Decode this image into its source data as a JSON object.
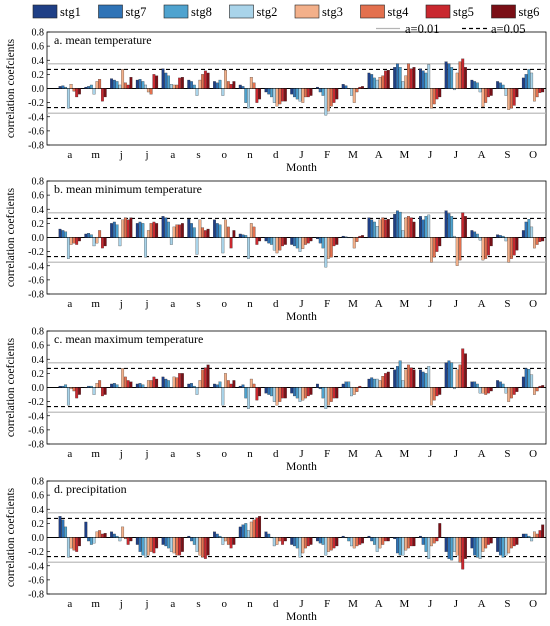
{
  "legend": {
    "items": [
      {
        "name": "stg1",
        "color": "#1f3f86"
      },
      {
        "name": "stg7",
        "color": "#2f73b6"
      },
      {
        "name": "stg8",
        "color": "#4fa3cf"
      },
      {
        "name": "stg2",
        "color": "#a9d4ea"
      },
      {
        "name": "stg3",
        "color": "#f3b08a"
      },
      {
        "name": "stg4",
        "color": "#e3704e"
      },
      {
        "name": "stg5",
        "color": "#c9282f"
      },
      {
        "name": "stg6",
        "color": "#7a0f16"
      }
    ],
    "threshold_items": [
      {
        "label": "a=0.01",
        "style": "solid-gray"
      },
      {
        "label": "a=0.05",
        "style": "dashed-black"
      }
    ]
  },
  "chart_data": [
    {
      "type": "bar",
      "title": "a. mean temperature",
      "xlabel": "Month",
      "ylabel": "correlation coefcients",
      "ylim": [
        -0.8,
        0.8
      ],
      "yticks": [
        "0.8",
        "0.6",
        "0.4",
        "0.2",
        "0.0",
        "-0.2",
        "-0.4",
        "-0.6",
        "-0.8"
      ],
      "categories": [
        "a",
        "m",
        "j",
        "j",
        "a",
        "s",
        "o",
        "n",
        "d",
        "J",
        "F",
        "M",
        "A",
        "M",
        "J",
        "J",
        "A",
        "S",
        "O"
      ],
      "thresholds": {
        "a=0.01": 0.35,
        "a=0.05": 0.27
      },
      "series": [
        {
          "name": "stg1",
          "values": [
            0.03,
            0.02,
            0.14,
            0.12,
            0.28,
            0.12,
            0.1,
            0.05,
            -0.05,
            -0.08,
            0.02,
            0.06,
            0.22,
            0.3,
            0.28,
            0.38,
            0.12,
            0.1,
            0.15
          ]
        },
        {
          "name": "stg7",
          "values": [
            0.04,
            0.03,
            0.12,
            0.13,
            0.22,
            0.1,
            0.08,
            0.03,
            -0.08,
            -0.12,
            -0.05,
            0.04,
            0.2,
            0.35,
            0.25,
            0.35,
            0.1,
            0.08,
            0.2
          ]
        },
        {
          "name": "stg8",
          "values": [
            0.02,
            0.05,
            0.1,
            0.1,
            0.18,
            0.05,
            0.12,
            -0.2,
            -0.12,
            -0.15,
            -0.1,
            0.0,
            0.15,
            0.3,
            0.22,
            0.3,
            0.08,
            0.05,
            0.27
          ]
        },
        {
          "name": "stg2",
          "values": [
            -0.28,
            -0.08,
            0.05,
            0.05,
            0.06,
            -0.1,
            -0.1,
            -0.28,
            -0.2,
            -0.18,
            -0.38,
            -0.1,
            0.12,
            0.1,
            0.34,
            -0.02,
            -0.05,
            -0.1,
            0.22
          ]
        },
        {
          "name": "stg3",
          "values": [
            0.06,
            0.1,
            0.27,
            -0.05,
            0.05,
            0.12,
            0.26,
            0.16,
            -0.25,
            -0.2,
            -0.32,
            -0.2,
            0.16,
            0.18,
            -0.28,
            0.22,
            -0.26,
            -0.3,
            -0.18
          ]
        },
        {
          "name": "stg4",
          "values": [
            -0.04,
            0.13,
            0.08,
            -0.08,
            0.05,
            0.2,
            0.1,
            0.08,
            -0.22,
            -0.12,
            -0.25,
            -0.05,
            0.18,
            0.35,
            -0.22,
            0.38,
            -0.2,
            -0.28,
            -0.12
          ]
        },
        {
          "name": "stg5",
          "values": [
            -0.12,
            -0.18,
            0.05,
            0.2,
            0.15,
            0.25,
            0.06,
            -0.2,
            -0.18,
            -0.12,
            -0.2,
            0.02,
            0.25,
            0.28,
            -0.15,
            0.42,
            -0.12,
            -0.24,
            -0.06
          ]
        },
        {
          "name": "stg6",
          "values": [
            -0.08,
            -0.12,
            0.16,
            0.18,
            0.16,
            0.22,
            0.1,
            -0.15,
            -0.18,
            -0.1,
            -0.15,
            0.03,
            0.26,
            0.3,
            -0.12,
            0.3,
            -0.1,
            -0.12,
            -0.05
          ]
        }
      ]
    },
    {
      "type": "bar",
      "title": "b. mean minimum temperature",
      "xlabel": "Month",
      "ylabel": "correlation coefcients",
      "ylim": [
        -0.8,
        0.8
      ],
      "yticks": [
        "0.8",
        "0.6",
        "0.4",
        "0.2",
        "0.0",
        "-0.2",
        "-0.4",
        "-0.6",
        "-0.8"
      ],
      "categories": [
        "a",
        "m",
        "j",
        "j",
        "a",
        "s",
        "o",
        "n",
        "d",
        "J",
        "F",
        "M",
        "A",
        "M",
        "J",
        "J",
        "A",
        "S",
        "O"
      ],
      "thresholds": {
        "a=0.01": 0.35,
        "a=0.05": 0.27
      },
      "series": [
        {
          "name": "stg1",
          "values": [
            0.12,
            0.05,
            0.2,
            0.2,
            0.3,
            0.26,
            0.25,
            0.05,
            -0.05,
            -0.1,
            -0.02,
            0.02,
            0.28,
            0.33,
            0.3,
            0.38,
            0.1,
            0.04,
            0.1
          ]
        },
        {
          "name": "stg7",
          "values": [
            0.1,
            0.06,
            0.22,
            0.22,
            0.28,
            0.2,
            0.2,
            0.04,
            -0.08,
            -0.12,
            -0.08,
            0.01,
            0.25,
            0.38,
            0.25,
            0.34,
            0.08,
            0.03,
            0.22
          ]
        },
        {
          "name": "stg8",
          "values": [
            0.08,
            0.04,
            0.18,
            0.2,
            0.22,
            0.14,
            0.18,
            0.03,
            -0.1,
            -0.15,
            -0.15,
            0.0,
            0.22,
            0.36,
            0.3,
            0.3,
            0.05,
            0.02,
            0.26
          ]
        },
        {
          "name": "stg2",
          "values": [
            -0.3,
            -0.12,
            -0.12,
            -0.28,
            -0.1,
            -0.24,
            -0.22,
            -0.3,
            -0.18,
            -0.2,
            -0.42,
            0.0,
            0.16,
            0.1,
            0.32,
            0.02,
            -0.04,
            -0.05,
            0.15
          ]
        },
        {
          "name": "stg3",
          "values": [
            -0.1,
            -0.08,
            0.25,
            0.1,
            0.15,
            0.25,
            0.25,
            0.2,
            -0.22,
            -0.16,
            -0.3,
            -0.15,
            0.25,
            0.28,
            -0.35,
            -0.4,
            -0.32,
            -0.35,
            -0.15
          ]
        },
        {
          "name": "stg4",
          "values": [
            -0.08,
            0.1,
            0.28,
            0.2,
            0.18,
            0.14,
            0.15,
            0.15,
            -0.18,
            -0.1,
            -0.28,
            -0.06,
            0.28,
            0.3,
            -0.28,
            -0.32,
            -0.3,
            -0.3,
            -0.1
          ]
        },
        {
          "name": "stg5",
          "values": [
            -0.1,
            -0.15,
            0.25,
            0.22,
            0.18,
            0.1,
            -0.15,
            -0.1,
            -0.12,
            -0.08,
            -0.12,
            0.02,
            0.25,
            0.28,
            -0.2,
            0.35,
            -0.25,
            -0.25,
            -0.06
          ]
        },
        {
          "name": "stg6",
          "values": [
            -0.05,
            -0.12,
            0.28,
            0.2,
            0.2,
            0.12,
            0.1,
            -0.05,
            -0.1,
            -0.05,
            -0.1,
            0.03,
            0.26,
            0.22,
            -0.12,
            0.3,
            -0.12,
            -0.18,
            -0.05
          ]
        }
      ]
    },
    {
      "type": "bar",
      "title": "c. mean maximum temperature",
      "xlabel": "Month",
      "ylabel": "correlation coefcients",
      "ylim": [
        -0.8,
        0.8
      ],
      "yticks": [
        "0.8",
        "0.6",
        "0.4",
        "0.2",
        "0.0",
        "-0.2",
        "-0.4",
        "-0.6",
        "-0.8"
      ],
      "categories": [
        "a",
        "m",
        "j",
        "j",
        "a",
        "s",
        "o",
        "n",
        "d",
        "J",
        "F",
        "M",
        "A",
        "M",
        "J",
        "J",
        "A",
        "S",
        "O"
      ],
      "thresholds": {
        "a=0.01": 0.35,
        "a=0.05": 0.27
      },
      "series": [
        {
          "name": "stg1",
          "values": [
            0.02,
            0.0,
            0.05,
            0.05,
            0.15,
            0.05,
            0.05,
            0.02,
            -0.08,
            -0.08,
            0.05,
            0.05,
            0.12,
            0.25,
            0.25,
            0.35,
            0.08,
            0.1,
            0.15
          ]
        },
        {
          "name": "stg7",
          "values": [
            0.02,
            0.02,
            0.06,
            0.06,
            0.12,
            0.06,
            0.04,
            0.04,
            -0.1,
            -0.12,
            -0.02,
            0.08,
            0.14,
            0.3,
            0.22,
            0.38,
            0.08,
            0.08,
            0.27
          ]
        },
        {
          "name": "stg8",
          "values": [
            0.04,
            0.02,
            0.04,
            0.04,
            0.1,
            0.02,
            0.08,
            -0.15,
            -0.12,
            -0.15,
            -0.15,
            0.08,
            0.12,
            0.38,
            0.2,
            0.35,
            0.05,
            0.05,
            0.26
          ]
        },
        {
          "name": "stg2",
          "values": [
            -0.25,
            -0.1,
            0.0,
            0.0,
            0.0,
            -0.1,
            -0.25,
            -0.3,
            -0.2,
            -0.2,
            -0.3,
            -0.12,
            0.12,
            0.1,
            0.3,
            -0.02,
            -0.08,
            -0.08,
            0.18
          ]
        },
        {
          "name": "stg3",
          "values": [
            -0.02,
            0.06,
            0.27,
            0.1,
            0.15,
            0.1,
            0.2,
            0.12,
            -0.25,
            -0.18,
            -0.25,
            -0.1,
            0.1,
            0.25,
            -0.25,
            0.25,
            -0.08,
            -0.2,
            -0.1
          ]
        },
        {
          "name": "stg4",
          "values": [
            -0.05,
            0.1,
            0.15,
            0.1,
            0.14,
            0.25,
            0.1,
            0.05,
            -0.2,
            -0.15,
            -0.2,
            -0.06,
            0.16,
            0.32,
            -0.18,
            0.32,
            -0.1,
            -0.15,
            -0.05
          ]
        },
        {
          "name": "stg5",
          "values": [
            -0.15,
            -0.12,
            0.1,
            0.15,
            0.2,
            0.28,
            0.05,
            -0.18,
            -0.15,
            -0.12,
            -0.15,
            0.02,
            0.2,
            0.28,
            -0.12,
            0.55,
            -0.08,
            -0.1,
            0.02
          ]
        },
        {
          "name": "stg6",
          "values": [
            -0.1,
            -0.1,
            0.08,
            0.12,
            0.2,
            0.32,
            0.1,
            -0.12,
            -0.15,
            -0.1,
            -0.15,
            0.0,
            0.22,
            0.25,
            -0.1,
            0.48,
            -0.05,
            -0.06,
            0.03
          ]
        }
      ]
    },
    {
      "type": "bar",
      "title": "d. precipitation",
      "xlabel": "Month",
      "ylabel": "correlation coefcients",
      "ylim": [
        -0.8,
        0.8
      ],
      "yticks": [
        "0.8",
        "0.6",
        "0.4",
        "0.2",
        "0.0",
        "-0.2",
        "-0.4",
        "-0.6",
        "-0.8"
      ],
      "categories": [
        "a",
        "m",
        "j",
        "j",
        "a",
        "s",
        "o",
        "n",
        "d",
        "J",
        "F",
        "M",
        "A",
        "M",
        "J",
        "J",
        "A",
        "S",
        "O"
      ],
      "thresholds": {
        "a=0.01": 0.35,
        "a=0.05": 0.27
      },
      "series": [
        {
          "name": "stg1",
          "values": [
            0.3,
            0.22,
            0.08,
            -0.1,
            -0.1,
            0.02,
            0.08,
            0.15,
            0.08,
            -0.1,
            -0.05,
            0.02,
            0.02,
            -0.02,
            0.02,
            -0.2,
            -0.15,
            -0.2,
            0.05
          ]
        },
        {
          "name": "stg7",
          "values": [
            0.25,
            -0.05,
            0.05,
            -0.2,
            -0.12,
            -0.05,
            0.05,
            0.18,
            0.05,
            -0.12,
            -0.08,
            0.0,
            -0.05,
            -0.22,
            -0.1,
            -0.3,
            -0.25,
            -0.25,
            0.05
          ]
        },
        {
          "name": "stg8",
          "values": [
            0.15,
            -0.1,
            0.02,
            -0.25,
            -0.15,
            -0.1,
            0.02,
            0.2,
            0.0,
            -0.15,
            -0.1,
            -0.05,
            -0.1,
            -0.25,
            -0.2,
            -0.32,
            -0.28,
            -0.28,
            0.02
          ]
        },
        {
          "name": "stg2",
          "values": [
            -0.28,
            -0.08,
            -0.05,
            -0.28,
            -0.2,
            -0.2,
            -0.1,
            0.1,
            -0.12,
            -0.28,
            -0.25,
            -0.12,
            -0.2,
            -0.25,
            -0.3,
            -0.2,
            -0.3,
            -0.25,
            -0.05
          ]
        },
        {
          "name": "stg3",
          "values": [
            -0.15,
            0.08,
            0.15,
            -0.25,
            -0.22,
            -0.25,
            -0.05,
            0.22,
            -0.1,
            -0.22,
            -0.2,
            -0.15,
            -0.15,
            -0.18,
            -0.12,
            -0.25,
            -0.2,
            -0.22,
            0.08
          ]
        },
        {
          "name": "stg4",
          "values": [
            -0.18,
            0.1,
            -0.02,
            -0.2,
            -0.25,
            -0.28,
            -0.1,
            0.25,
            -0.05,
            -0.15,
            -0.18,
            -0.12,
            -0.1,
            -0.15,
            -0.08,
            -0.35,
            -0.15,
            -0.15,
            0.05
          ]
        },
        {
          "name": "stg5",
          "values": [
            -0.2,
            0.05,
            -0.1,
            -0.22,
            -0.25,
            -0.3,
            -0.15,
            0.28,
            -0.1,
            -0.12,
            -0.15,
            -0.1,
            -0.05,
            -0.12,
            -0.05,
            -0.45,
            -0.1,
            -0.12,
            0.1
          ]
        },
        {
          "name": "stg6",
          "values": [
            -0.12,
            0.06,
            -0.05,
            -0.15,
            -0.2,
            -0.25,
            -0.1,
            0.3,
            -0.05,
            -0.1,
            -0.12,
            -0.08,
            -0.05,
            -0.12,
            0.2,
            -0.3,
            -0.08,
            -0.1,
            0.18
          ]
        }
      ]
    }
  ]
}
